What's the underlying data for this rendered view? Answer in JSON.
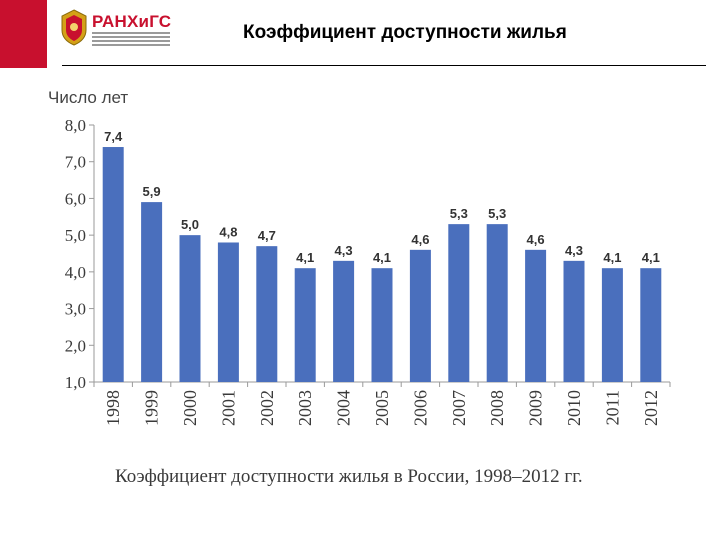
{
  "header": {
    "logo_text": "РАНХиГС",
    "title": "Коэффициент доступности жилья"
  },
  "colors": {
    "bar": "#4a6fbd",
    "accent": "#c8102e"
  },
  "chart_data": {
    "type": "bar",
    "ylabel": "Число лет",
    "ylim": [
      1.0,
      8.0
    ],
    "yticks": [
      "1,0",
      "2,0",
      "3,0",
      "4,0",
      "5,0",
      "6,0",
      "7,0",
      "8,0"
    ],
    "categories": [
      "1998",
      "1999",
      "2000",
      "2001",
      "2002",
      "2003",
      "2004",
      "2005",
      "2006",
      "2007",
      "2008",
      "2009",
      "2010",
      "2011",
      "2012"
    ],
    "values": [
      7.4,
      5.9,
      5.0,
      4.8,
      4.7,
      4.1,
      4.3,
      4.1,
      4.6,
      5.3,
      5.3,
      4.6,
      4.3,
      4.1,
      4.1
    ],
    "value_labels": [
      "7,4",
      "5,9",
      "5,0",
      "4,8",
      "4,7",
      "4,1",
      "4,3",
      "4,1",
      "4,6",
      "5,3",
      "5,3",
      "4,6",
      "4,3",
      "4,1",
      "4,1"
    ],
    "caption": "Коэффициент доступности жилья в России, 1998–2012 гг."
  }
}
